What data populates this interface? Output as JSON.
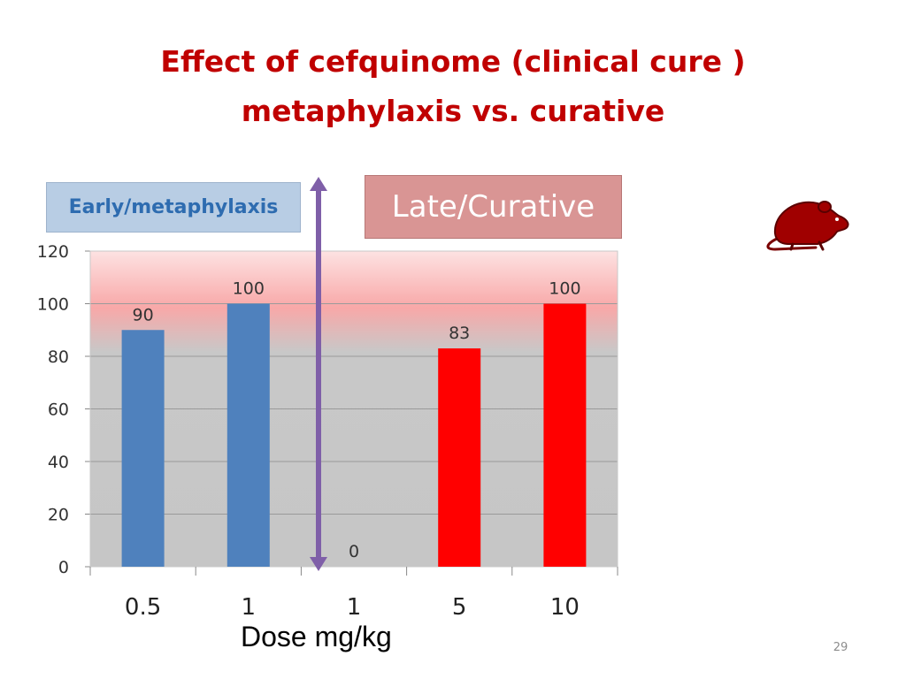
{
  "slide": {
    "title_line1": "Effect of cefquinome (clinical cure )",
    "title_line2": "metaphylaxis vs. curative",
    "label_early": "Early/metaphylaxis",
    "label_late": "Late/Curative",
    "page_number": "29",
    "icon": "rat-icon"
  },
  "colors": {
    "title": "#c00000",
    "early_bars": "#4f81bd",
    "late_bars": "#ff0000",
    "divider_arrow": "#7f5fa8",
    "rat": "#a00000"
  },
  "chart_data": {
    "type": "bar",
    "title": "",
    "xlabel": "Dose mg/kg",
    "ylabel": "",
    "categories": [
      "0.5",
      "1",
      "1",
      "5",
      "10"
    ],
    "values": [
      90,
      100,
      0,
      83,
      100
    ],
    "data_labels": [
      "90",
      "100",
      "0",
      "83",
      "100"
    ],
    "groups": [
      "early",
      "early",
      "late",
      "late",
      "late"
    ],
    "ylim": [
      0,
      120
    ],
    "yticks": [
      0,
      20,
      40,
      60,
      80,
      100,
      120
    ],
    "grid": true,
    "legend": "none"
  }
}
